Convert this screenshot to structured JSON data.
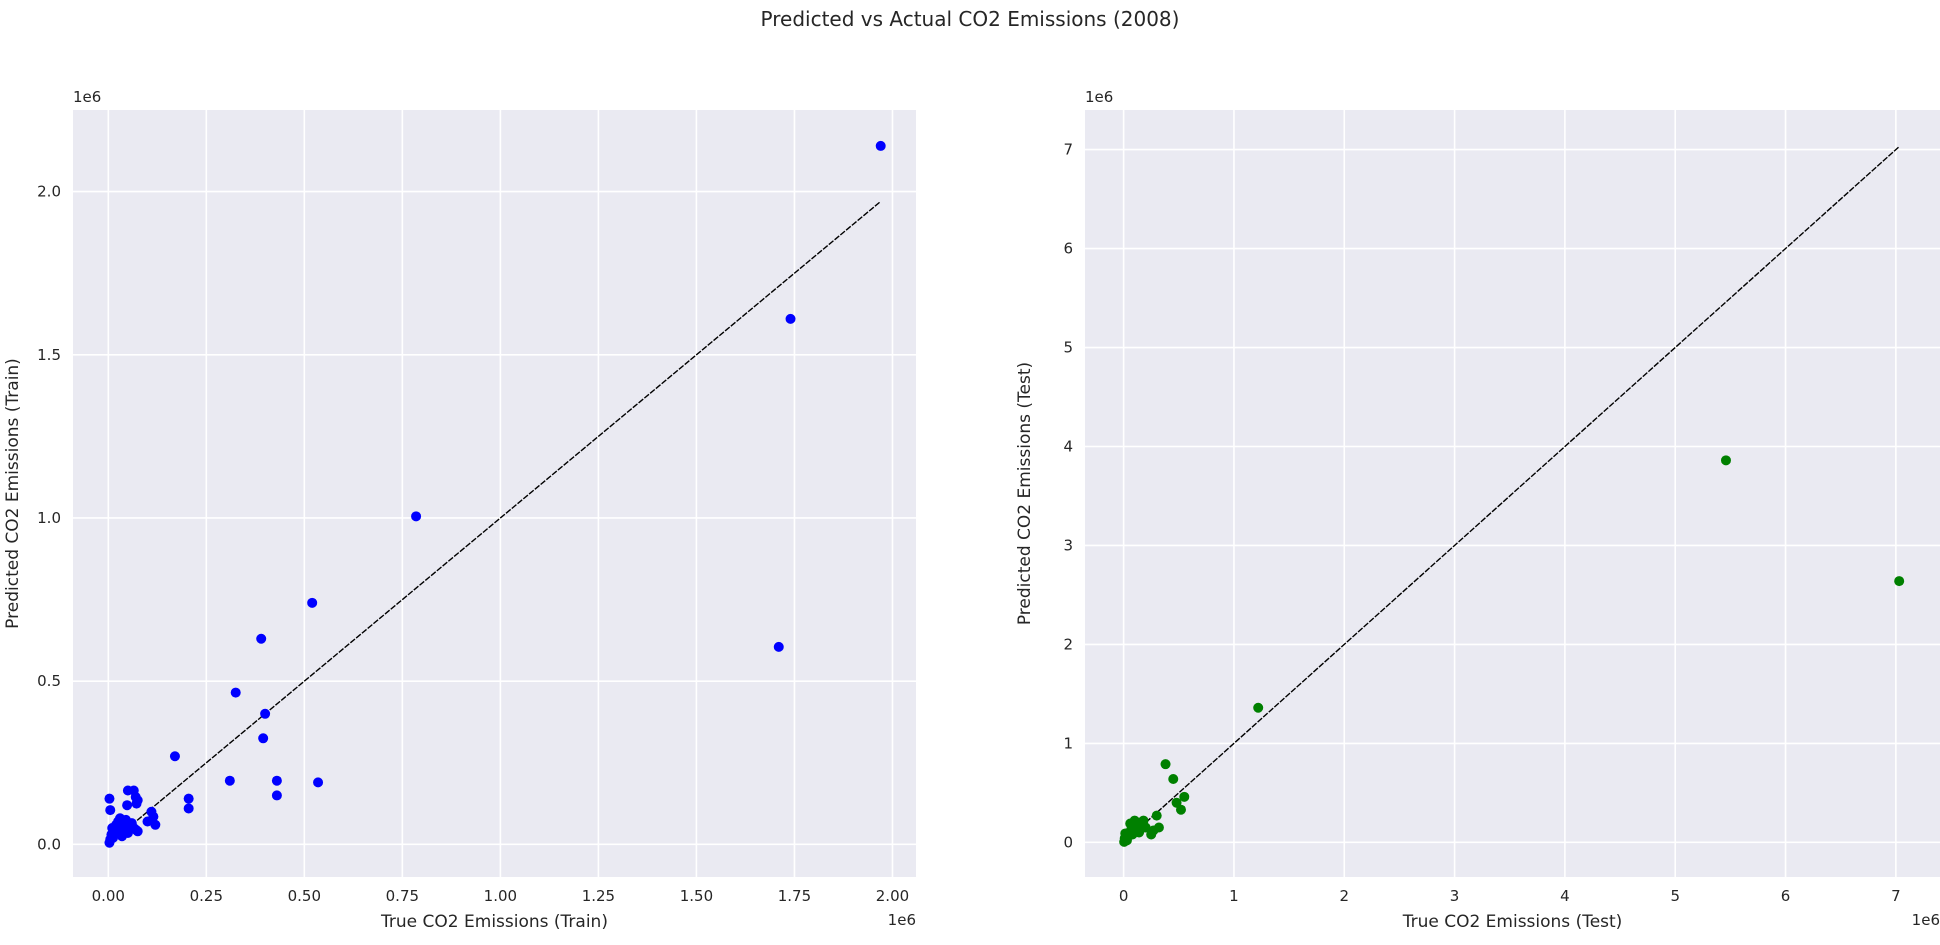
{
  "title": "Predicted vs Actual CO2 Emissions (2008)",
  "chart_data": [
    {
      "type": "scatter",
      "name": "train",
      "xlabel": "True CO2 Emissions (Train)",
      "ylabel": "Predicted CO2 Emissions (Train)",
      "x_offset_label": "1e6",
      "y_offset_label": "1e6",
      "xlim": [
        -0.09,
        2.06
      ],
      "ylim": [
        -0.1,
        2.25
      ],
      "xticks": [
        0,
        0.25,
        0.5,
        0.75,
        1.0,
        1.25,
        1.5,
        1.75,
        2.0
      ],
      "xtick_labels": [
        "0.00",
        "0.25",
        "0.50",
        "0.75",
        "1.00",
        "1.25",
        "1.50",
        "1.75",
        "2.00"
      ],
      "yticks": [
        0,
        0.5,
        1.0,
        1.5,
        2.0
      ],
      "ytick_labels": [
        "0.0",
        "0.5",
        "1.0",
        "1.5",
        "2.0"
      ],
      "point_color": "#0000ff",
      "grid": true,
      "identity_line": {
        "from": 0.0,
        "to": 1.97,
        "color": "#000000",
        "style": "dashed"
      },
      "points": [
        [
          0.003,
          0.005
        ],
        [
          0.005,
          0.015
        ],
        [
          0.008,
          0.03
        ],
        [
          0.01,
          0.05
        ],
        [
          0.012,
          0.02
        ],
        [
          0.015,
          0.04
        ],
        [
          0.02,
          0.06
        ],
        [
          0.022,
          0.035
        ],
        [
          0.025,
          0.07
        ],
        [
          0.028,
          0.05
        ],
        [
          0.03,
          0.08
        ],
        [
          0.035,
          0.025
        ],
        [
          0.038,
          0.06
        ],
        [
          0.04,
          0.045
        ],
        [
          0.045,
          0.075
        ],
        [
          0.05,
          0.035
        ],
        [
          0.055,
          0.055
        ],
        [
          0.06,
          0.065
        ],
        [
          0.065,
          0.05
        ],
        [
          0.07,
          0.045
        ],
        [
          0.075,
          0.04
        ],
        [
          0.003,
          0.14
        ],
        [
          0.005,
          0.105
        ],
        [
          0.048,
          0.12
        ],
        [
          0.05,
          0.165
        ],
        [
          0.065,
          0.165
        ],
        [
          0.07,
          0.145
        ],
        [
          0.072,
          0.125
        ],
        [
          0.075,
          0.135
        ],
        [
          0.1,
          0.07
        ],
        [
          0.11,
          0.1
        ],
        [
          0.115,
          0.085
        ],
        [
          0.12,
          0.06
        ],
        [
          0.17,
          0.27
        ],
        [
          0.205,
          0.14
        ],
        [
          0.205,
          0.11
        ],
        [
          0.31,
          0.195
        ],
        [
          0.325,
          0.465
        ],
        [
          0.39,
          0.63
        ],
        [
          0.395,
          0.325
        ],
        [
          0.4,
          0.4
        ],
        [
          0.43,
          0.195
        ],
        [
          0.43,
          0.15
        ],
        [
          0.52,
          0.74
        ],
        [
          0.535,
          0.19
        ],
        [
          0.785,
          1.005
        ],
        [
          1.71,
          0.605
        ],
        [
          1.74,
          1.61
        ],
        [
          1.97,
          2.14
        ]
      ]
    },
    {
      "type": "scatter",
      "name": "test",
      "xlabel": "True CO2 Emissions (Test)",
      "ylabel": "Predicted CO2 Emissions (Test)",
      "x_offset_label": "1e6",
      "y_offset_label": "1e6",
      "xlim": [
        -0.35,
        7.4
      ],
      "ylim": [
        -0.35,
        7.4
      ],
      "xticks": [
        0,
        1,
        2,
        3,
        4,
        5,
        6,
        7
      ],
      "xtick_labels": [
        "0",
        "1",
        "2",
        "3",
        "4",
        "5",
        "6",
        "7"
      ],
      "yticks": [
        0,
        1,
        2,
        3,
        4,
        5,
        6,
        7
      ],
      "ytick_labels": [
        "0",
        "1",
        "2",
        "3",
        "4",
        "5",
        "6",
        "7"
      ],
      "point_color": "#008000",
      "grid": true,
      "identity_line": {
        "from": 0.0,
        "to": 7.03,
        "color": "#000000",
        "style": "dashed"
      },
      "points": [
        [
          0.005,
          0.005
        ],
        [
          0.01,
          0.04
        ],
        [
          0.015,
          0.09
        ],
        [
          0.03,
          0.02
        ],
        [
          0.04,
          0.06
        ],
        [
          0.05,
          0.1
        ],
        [
          0.06,
          0.19
        ],
        [
          0.07,
          0.13
        ],
        [
          0.08,
          0.08
        ],
        [
          0.1,
          0.22
        ],
        [
          0.12,
          0.15
        ],
        [
          0.14,
          0.1
        ],
        [
          0.15,
          0.2
        ],
        [
          0.18,
          0.22
        ],
        [
          0.2,
          0.15
        ],
        [
          0.25,
          0.08
        ],
        [
          0.27,
          0.12
        ],
        [
          0.3,
          0.27
        ],
        [
          0.32,
          0.15
        ],
        [
          0.38,
          0.79
        ],
        [
          0.45,
          0.64
        ],
        [
          0.48,
          0.4
        ],
        [
          0.52,
          0.33
        ],
        [
          0.55,
          0.46
        ],
        [
          1.22,
          1.36
        ],
        [
          5.46,
          3.86
        ],
        [
          7.03,
          2.64
        ]
      ]
    }
  ]
}
